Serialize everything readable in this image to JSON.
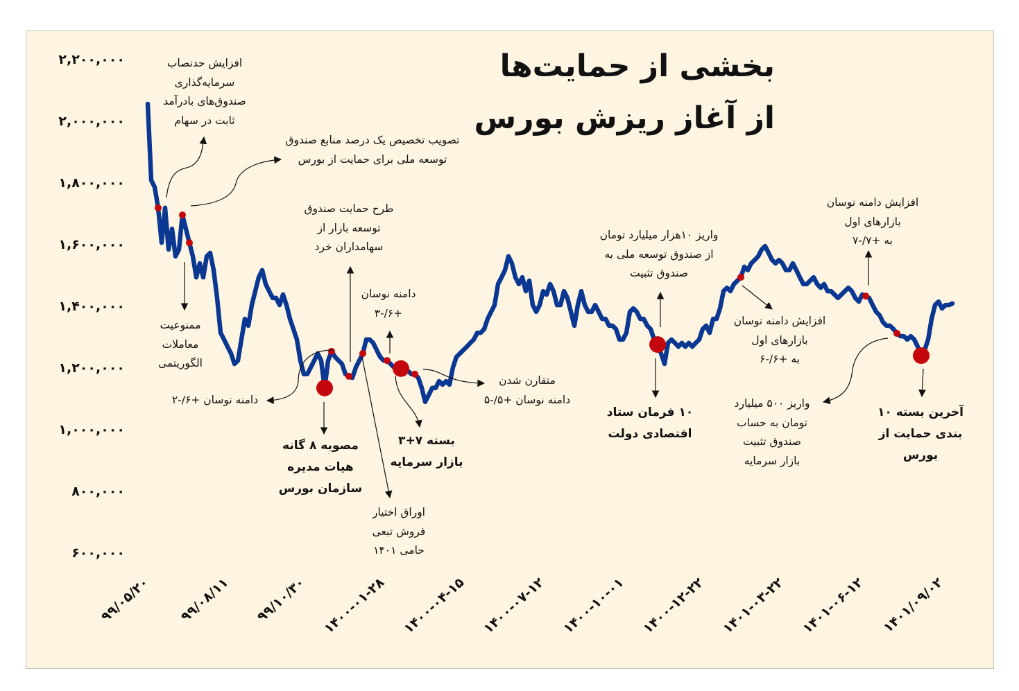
{
  "title": {
    "line1": "بخشی از حمایت‌ها",
    "line2": "از آغاز ریزش بورس"
  },
  "colors": {
    "background": "#fdf5e1",
    "line": "#0a3791",
    "marker": "#c4070c",
    "text": "#111111"
  },
  "chart_data": {
    "type": "line",
    "title": "بخشی از حمایت‌ها از آغاز ریزش بورس",
    "xlabel": "",
    "ylabel": "",
    "ylim": [
      600000,
      2200000
    ],
    "grid": false,
    "yticks": [
      {
        "value": 2200000,
        "label": "۲,۲۰۰,۰۰۰"
      },
      {
        "value": 2000000,
        "label": "۲,۰۰۰,۰۰۰"
      },
      {
        "value": 1800000,
        "label": "۱,۸۰۰,۰۰۰"
      },
      {
        "value": 1600000,
        "label": "۱,۶۰۰,۰۰۰"
      },
      {
        "value": 1400000,
        "label": "۱,۴۰۰,۰۰۰"
      },
      {
        "value": 1200000,
        "label": "۱,۲۰۰,۰۰۰"
      },
      {
        "value": 1000000,
        "label": "۱,۰۰۰,۰۰۰"
      },
      {
        "value": 800000,
        "label": "۸۰۰,۰۰۰"
      },
      {
        "value": 600000,
        "label": "۶۰۰,۰۰۰"
      }
    ],
    "xticks": [
      {
        "index": 0,
        "label": "۹۹/۰۵/۲۰"
      },
      {
        "index": 23,
        "label": "۹۹/۰۸/۱۱"
      },
      {
        "index": 45,
        "label": "۹۹/۱۰/۳۰"
      },
      {
        "index": 68,
        "label": "۱۴۰۰-۰۱-۲۸"
      },
      {
        "index": 91,
        "label": "۱۴۰۰-۰۴-۱۵"
      },
      {
        "index": 114,
        "label": "۱۴۰۰-۰۷-۱۲"
      },
      {
        "index": 137,
        "label": "۱۴۰۰-۱۰-۰۱"
      },
      {
        "index": 160,
        "label": "۱۴۰۰-۱۲-۲۲"
      },
      {
        "index": 183,
        "label": "۱۴۰۱-۰۳-۲۲"
      },
      {
        "index": 206,
        "label": "۱۴۰۱-۰۶-۱۲"
      },
      {
        "index": 229,
        "label": "۱۴۰۱/۰۹/۰۲"
      }
    ],
    "series": [
      {
        "values": [
          2054000,
          1807000,
          1784000,
          1717000,
          1604000,
          1717000,
          1582000,
          1649000,
          1560000,
          1582000,
          1694000,
          1649000,
          1604000,
          1560000,
          1492000,
          1537000,
          1492000,
          1560000,
          1571000,
          1515000,
          1425000,
          1312000,
          1290000,
          1267000,
          1245000,
          1211000,
          1222000,
          1290000,
          1357000,
          1335000,
          1402000,
          1447000,
          1492000,
          1515000,
          1470000,
          1447000,
          1425000,
          1425000,
          1402000,
          1436000,
          1402000,
          1357000,
          1324000,
          1290000,
          1222000,
          1178000,
          1178000,
          1200000,
          1222000,
          1245000,
          1222000,
          1133000,
          1222000,
          1252000,
          1234000,
          1222000,
          1211000,
          1178000,
          1171000,
          1166000,
          1200000,
          1222000,
          1245000,
          1290000,
          1290000,
          1279000,
          1256000,
          1234000,
          1222000,
          1222000,
          1211000,
          1200000,
          1200000,
          1196000,
          1200000,
          1189000,
          1178000,
          1178000,
          1166000,
          1133000,
          1088000,
          1110000,
          1133000,
          1133000,
          1155000,
          1144000,
          1155000,
          1144000,
          1200000,
          1234000,
          1245000,
          1256000,
          1267000,
          1279000,
          1290000,
          1312000,
          1312000,
          1324000,
          1357000,
          1380000,
          1402000,
          1470000,
          1492000,
          1515000,
          1560000,
          1537000,
          1492000,
          1470000,
          1492000,
          1447000,
          1481000,
          1402000,
          1380000,
          1402000,
          1447000,
          1436000,
          1470000,
          1447000,
          1402000,
          1402000,
          1447000,
          1425000,
          1380000,
          1335000,
          1402000,
          1447000,
          1402000,
          1380000,
          1380000,
          1402000,
          1380000,
          1357000,
          1357000,
          1335000,
          1335000,
          1324000,
          1290000,
          1290000,
          1312000,
          1380000,
          1391000,
          1380000,
          1357000,
          1357000,
          1335000,
          1324000,
          1290000,
          1274000,
          1245000,
          1211000,
          1279000,
          1290000,
          1279000,
          1267000,
          1279000,
          1267000,
          1279000,
          1267000,
          1279000,
          1290000,
          1324000,
          1335000,
          1312000,
          1357000,
          1357000,
          1391000,
          1447000,
          1458000,
          1447000,
          1470000,
          1481000,
          1492000,
          1526000,
          1515000,
          1537000,
          1548000,
          1560000,
          1582000,
          1593000,
          1571000,
          1548000,
          1537000,
          1548000,
          1537000,
          1515000,
          1515000,
          1537000,
          1515000,
          1492000,
          1470000,
          1470000,
          1481000,
          1492000,
          1470000,
          1458000,
          1470000,
          1447000,
          1447000,
          1436000,
          1425000,
          1436000,
          1447000,
          1458000,
          1447000,
          1425000,
          1413000,
          1436000,
          1431000,
          1425000,
          1402000,
          1380000,
          1369000,
          1346000,
          1335000,
          1335000,
          1324000,
          1310000,
          1301000,
          1301000,
          1290000,
          1301000,
          1290000,
          1267000,
          1238000,
          1256000,
          1290000,
          1357000,
          1402000,
          1413000,
          1391000,
          1402000,
          1402000,
          1407000
        ]
      }
    ],
    "markers": [
      {
        "index": 3,
        "size": "small"
      },
      {
        "index": 10,
        "size": "small"
      },
      {
        "index": 12,
        "size": "small"
      },
      {
        "index": 51,
        "size": "large"
      },
      {
        "index": 53,
        "size": "small"
      },
      {
        "index": 58,
        "size": "small"
      },
      {
        "index": 62,
        "size": "small"
      },
      {
        "index": 69,
        "size": "small"
      },
      {
        "index": 73,
        "size": "large"
      },
      {
        "index": 77,
        "size": "small"
      },
      {
        "index": 147,
        "size": "large"
      },
      {
        "index": 171,
        "size": "small"
      },
      {
        "index": 207,
        "size": "small"
      },
      {
        "index": 216,
        "size": "small"
      },
      {
        "index": 223,
        "size": "large"
      }
    ]
  },
  "annotations": [
    {
      "lines": [
        "افزایش حدنصاب",
        "سرمایه‌گذاری",
        "صندوق‌های بادرآمد",
        "ثابت در سهام"
      ]
    },
    {
      "lines": [
        "تصویب تخصیص یک درصد منابع صندوق",
        "توسعه ملی برای حمایت از بورس"
      ]
    },
    {
      "lines": [
        "طرح حمایت صندوق",
        "توسعه بازار از",
        "سهامداران خرد"
      ]
    },
    {
      "lines": [
        "ممنوعیت",
        "معاملات",
        "الگوریتمی"
      ]
    },
    {
      "lines": [
        "دامنه نوسان",
        "+۶/-۳"
      ]
    },
    {
      "lines": [
        "دامنه نوسان +۶/-۲"
      ]
    },
    {
      "lines": [
        "مصوبه ۸ گانه",
        "هیات مدیره",
        "سازمان بورس"
      ]
    },
    {
      "lines": [
        "اوراق اختیار",
        "فروش تبعی",
        "حامی ۱۴۰۱"
      ]
    },
    {
      "lines": [
        "بسته ۷+۳",
        "بازار سرمایه"
      ]
    },
    {
      "lines": [
        "متقارن شدن",
        "دامنه نوسان +۵/-۵"
      ]
    },
    {
      "lines": [
        "واریز ۱۰هزار میلیارد تومان",
        "از صندوق توسعه ملی به",
        "صندوق تثبیت"
      ]
    },
    {
      "lines": [
        "۱۰ فرمان ستاد",
        "اقتصادی دولت"
      ]
    },
    {
      "lines": [
        "افزایش دامنه نوسان",
        "بازارهای اول",
        "به +۶/-۶"
      ]
    },
    {
      "lines": [
        "افزایش دامنه نوسان",
        "بازارهای اول",
        "به +۷/-۷"
      ]
    },
    {
      "lines": [
        "واریز ۵۰۰ میلیارد",
        "تومان به حساب",
        "صندوق تثبیت",
        "بازار سرمایه"
      ]
    },
    {
      "lines": [
        "آخرین بسته ۱۰",
        "بندی حمایت از",
        "بورس"
      ]
    }
  ]
}
